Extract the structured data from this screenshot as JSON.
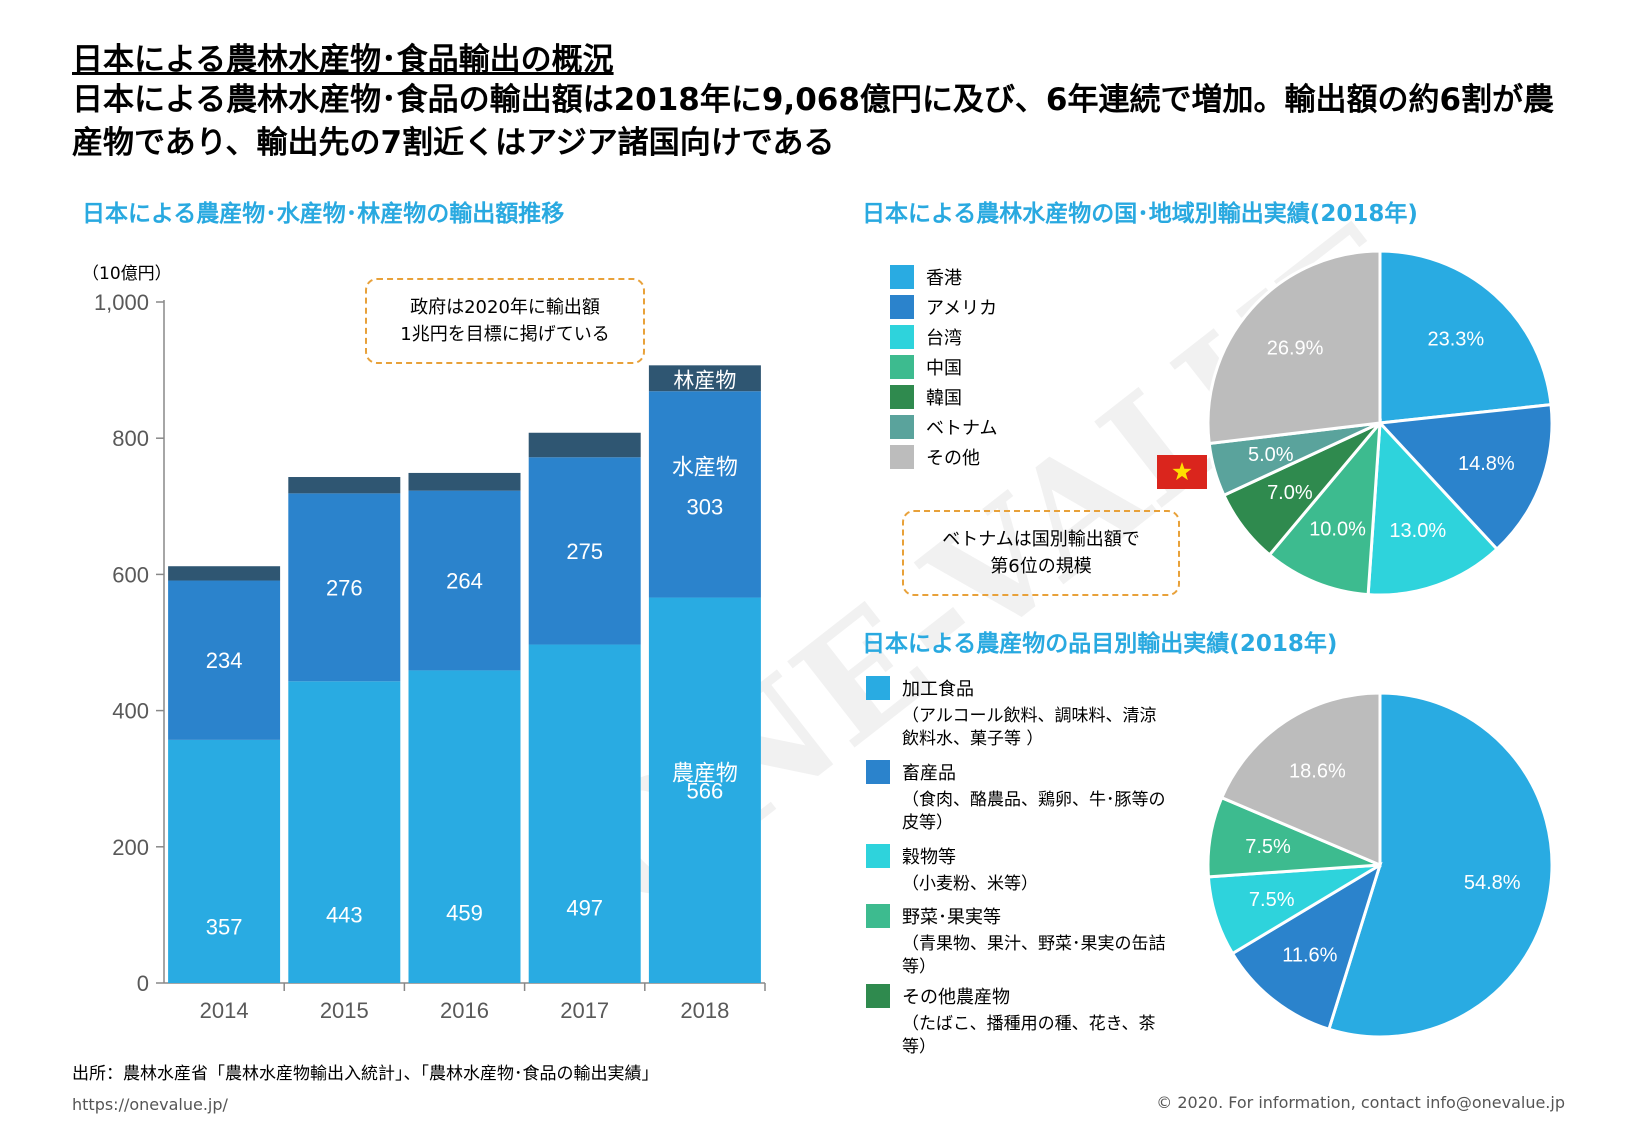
{
  "header": {
    "title": "日本による農林水産物･食品輸出の概況",
    "subtitle": "日本による農林水産物･食品の輸出額は2018年に9,068億円に及び、6年連続で増加。輸出額の約6割が農産物であり、輸出先の7割近くはアジア諸国向けである"
  },
  "bar_section": {
    "heading": "日本による農産物･水産物･林産物の輸出額推移",
    "unit": "（10億円）",
    "callout": [
      "政府は2020年に輸出額",
      "1兆円を目標に掲げている"
    ],
    "label_forest": "林産物",
    "label_fish": "水産物",
    "label_agri": "農産物"
  },
  "country_section": {
    "heading": "日本による農林水産物の国･地域別輸出実績(2018年)",
    "callout": [
      "ベトナムは国別輸出額で",
      "第6位の規模"
    ],
    "flag_icon": "vietnam-flag-icon"
  },
  "product_section": {
    "heading": "日本による農産物の品目別輸出実績(2018年)",
    "legend": [
      {
        "name": "加工食品",
        "desc": "（アルコール飲料、調味料、清涼飲料水、菓子等 ）"
      },
      {
        "name": "畜産品",
        "desc": "（食肉、酪農品、鶏卵、牛･豚等の皮等）"
      },
      {
        "name": "穀物等",
        "desc": "（小麦粉、米等）"
      },
      {
        "name": "野菜･果実等",
        "desc": "（青果物、果汁、野菜･果実の缶詰等）"
      },
      {
        "name": "その他農産物",
        "desc": "（たばこ、播種用の種、花き、茶等）"
      }
    ]
  },
  "footer": {
    "source": "出所：農林水産省「農林水産物輸出入統計」、「農林水産物･食品の輸出実績」",
    "url": "https://onevalue.jp/",
    "copyright": "© 2020. For information, contact  info@onevalue.jp"
  },
  "watermark": "ONE-VALUE",
  "colors": {
    "agri": "#29abe2",
    "fish": "#2b83cc",
    "forest": "#2f5672",
    "accent": "#29a9e0",
    "callout_border": "#e8a13a"
  },
  "chart_data": [
    {
      "type": "bar",
      "stacked": true,
      "categories": [
        "2014",
        "2015",
        "2016",
        "2017",
        "2018"
      ],
      "ylim": [
        0,
        1000
      ],
      "yticks": [
        "0",
        "200",
        "400",
        "600",
        "800",
        "1,000"
      ],
      "series": [
        {
          "name": "農産物",
          "values": [
            357,
            443,
            459,
            497,
            566
          ],
          "color": "#29abe2"
        },
        {
          "name": "水産物",
          "values": [
            234,
            276,
            264,
            275,
            303
          ],
          "color": "#2b83cc"
        },
        {
          "name": "林産物",
          "values": [
            21,
            24,
            26,
            36,
            38
          ],
          "color": "#2f5672"
        }
      ]
    },
    {
      "type": "pie",
      "labels": [
        "香港",
        "アメリカ",
        "台湾",
        "中国",
        "韓国",
        "ベトナム",
        "その他"
      ],
      "values": [
        23.3,
        14.8,
        13.0,
        10.0,
        7.0,
        5.0,
        26.9
      ],
      "value_labels": [
        "23.3%",
        "14.8%",
        "13.0%",
        "10.0%",
        "7.0%",
        "5.0%",
        "26.9%"
      ],
      "colors": [
        "#29abe2",
        "#2b83cc",
        "#2ed3dc",
        "#3dbb8f",
        "#2f8a4e",
        "#5aa39c",
        "#bcbcbc"
      ]
    },
    {
      "type": "pie",
      "labels": [
        "加工食品",
        "畜産品",
        "穀物等",
        "野菜･果実等",
        "その他農産物"
      ],
      "values": [
        54.8,
        11.6,
        7.5,
        7.5,
        18.6
      ],
      "value_labels": [
        "54.8%",
        "11.6%",
        "7.5%",
        "7.5%",
        "18.6%"
      ],
      "colors": [
        "#29abe2",
        "#2b83cc",
        "#2ed3dc",
        "#3dbb8f",
        "#bcbcbc"
      ]
    }
  ]
}
